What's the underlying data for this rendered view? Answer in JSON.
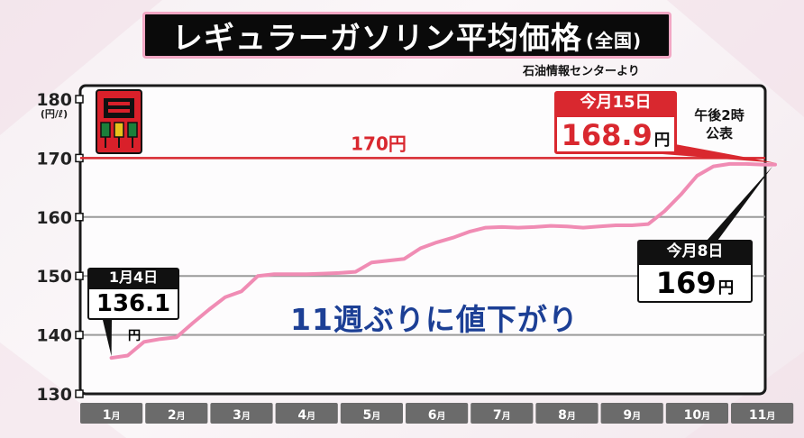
{
  "title": {
    "main": "レギュラーガソリン平均価格",
    "sub": "(全国)"
  },
  "source": "石油情報センターより",
  "chart_data": {
    "type": "line",
    "title": "レギュラーガソリン平均価格(全国)",
    "ylabel": "(円/ℓ)",
    "ylim": [
      130,
      180
    ],
    "yticks": [
      "130",
      "140",
      "150",
      "160",
      "170",
      "180"
    ],
    "categories": [
      "1月",
      "2月",
      "3月",
      "4月",
      "5月",
      "6月",
      "7月",
      "8月",
      "9月",
      "10月",
      "11月"
    ],
    "reference_line": {
      "value": 170,
      "label": "170円",
      "color": "#d9282f"
    },
    "series": [
      {
        "color": "#f08cb4",
        "x": [
          0.0,
          0.25,
          0.5,
          0.75,
          1.0,
          1.25,
          1.5,
          1.75,
          2.0,
          2.25,
          2.5,
          2.75,
          3.0,
          3.25,
          3.5,
          3.75,
          4.0,
          4.25,
          4.5,
          4.75,
          5.0,
          5.25,
          5.5,
          5.75,
          6.0,
          6.25,
          6.5,
          6.75,
          7.0,
          7.25,
          7.5,
          7.75,
          8.0,
          8.25,
          8.5,
          8.75,
          9.0,
          9.25,
          9.5,
          9.75,
          10.0,
          10.2
        ],
        "values": [
          136.1,
          136.5,
          138.8,
          139.3,
          139.6,
          142.0,
          144.3,
          146.4,
          147.4,
          150.0,
          150.3,
          150.3,
          150.3,
          150.4,
          150.5,
          150.7,
          152.3,
          152.6,
          152.9,
          154.7,
          155.7,
          156.5,
          157.5,
          158.2,
          158.3,
          158.2,
          158.3,
          158.5,
          158.4,
          158.2,
          158.4,
          158.6,
          158.6,
          158.8,
          161.0,
          163.8,
          167.0,
          168.6,
          169.0,
          169.0,
          168.9,
          168.9
        ]
      }
    ],
    "annotations": {
      "jan4": {
        "label": "1月4日",
        "value": "136.1",
        "unit": "円"
      },
      "nov8": {
        "label": "今月8日",
        "value": "169",
        "unit": "円"
      },
      "nov15": {
        "label": "今月15日",
        "value": "168.9",
        "unit": "円"
      },
      "announce": [
        "午後2時",
        "公表"
      ],
      "headline": "11週ぶりに値下がり"
    }
  }
}
